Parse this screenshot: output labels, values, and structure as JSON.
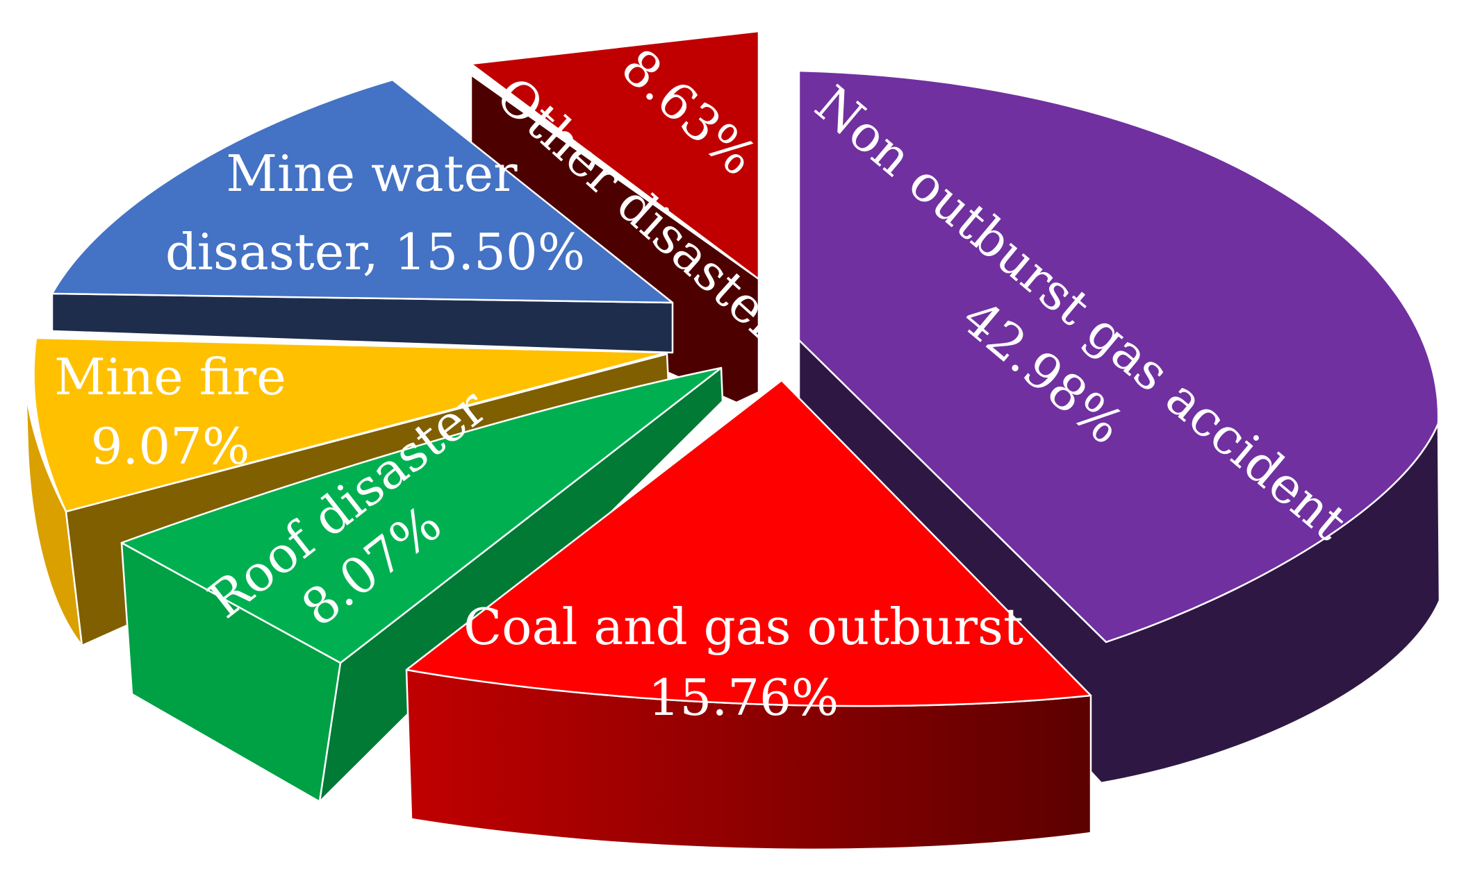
{
  "chart_data": {
    "type": "pie",
    "style": "3d-exploded",
    "slices": [
      {
        "name": "Non outburst gas accident",
        "value": 42.98,
        "value_label": "42.98%",
        "color": "#7030A0",
        "side_color": "#2E1843"
      },
      {
        "name": "Coal and gas outburst",
        "value": 15.76,
        "value_label": "15.76%",
        "color": "#FF0000",
        "side_color": "#7A0000"
      },
      {
        "name": "Roof disaster",
        "value": 8.07,
        "value_label": "8.07%",
        "color": "#00B050",
        "side_color": "#007A35"
      },
      {
        "name": "Mine fire",
        "value": 9.07,
        "value_label": "9.07%",
        "color": "#FFC000",
        "side_color": "#7F5F00"
      },
      {
        "name": "Mine water disaster",
        "value": 15.5,
        "value_label": "15.50%",
        "color": "#4472C4",
        "side_color": "#1F2D4D"
      },
      {
        "name": "Other disaster",
        "value": 8.63,
        "value_label": "8.63%",
        "color": "#C00000",
        "side_color": "#4D0000"
      }
    ]
  }
}
